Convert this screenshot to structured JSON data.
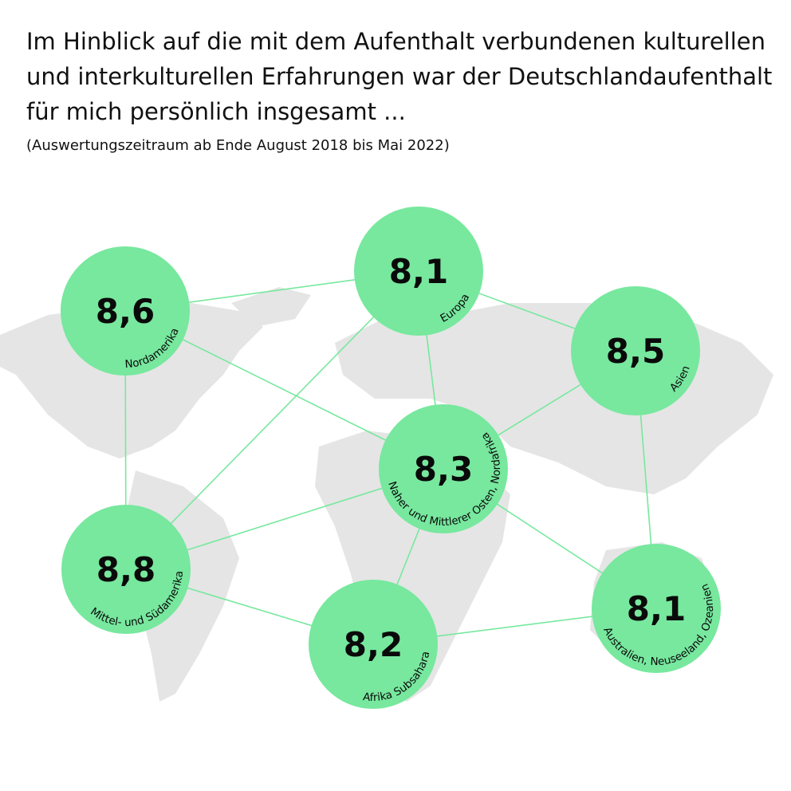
{
  "title": "Im Hinblick auf die mit dem Aufenthalt verbundenen kulturellen und interkulturellen Erfahrungen war der Deutschlandaufenthalt für mich persönlich insgesamt ...",
  "subtitle": "(Auswertungszeitraum ab Ende August 2018 bis Mai 2022)",
  "colors": {
    "node": "#77e89e",
    "link": "#77e89e",
    "map": "#e5e5e5"
  },
  "nodes": [
    {
      "id": "na",
      "label": "Nordamerika",
      "value": "8,6"
    },
    {
      "id": "eu",
      "label": "Europa",
      "value": "8,1"
    },
    {
      "id": "as",
      "label": "Asien",
      "value": "8,5"
    },
    {
      "id": "me",
      "label": "Naher und Mittlerer Osten, Nordafrika",
      "value": "8,3"
    },
    {
      "id": "sa",
      "label": "Mittel- und Südamerika",
      "value": "8,8"
    },
    {
      "id": "af",
      "label": "Afrika Subsahara",
      "value": "8,2"
    },
    {
      "id": "au",
      "label": "Australien, Neuseeland, Ozeanien",
      "value": "8,1"
    }
  ],
  "links": [
    [
      "na",
      "eu"
    ],
    [
      "na",
      "me"
    ],
    [
      "na",
      "sa"
    ],
    [
      "eu",
      "sa"
    ],
    [
      "eu",
      "me"
    ],
    [
      "eu",
      "as"
    ],
    [
      "as",
      "me"
    ],
    [
      "as",
      "au"
    ],
    [
      "me",
      "sa"
    ],
    [
      "me",
      "af"
    ],
    [
      "me",
      "au"
    ],
    [
      "sa",
      "af"
    ],
    [
      "af",
      "au"
    ]
  ]
}
